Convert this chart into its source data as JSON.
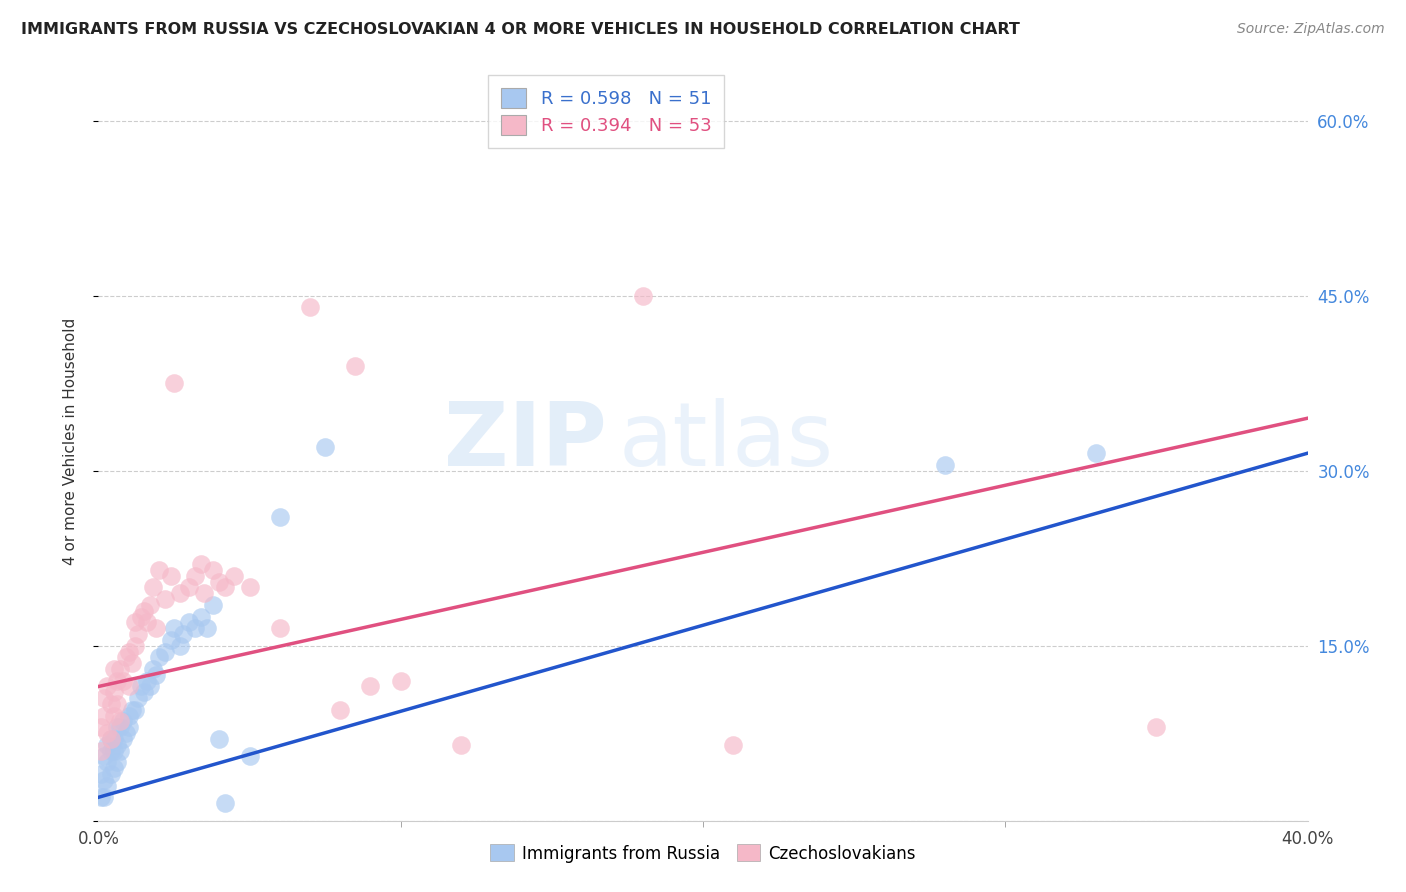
{
  "title": "IMMIGRANTS FROM RUSSIA VS CZECHOSLOVAKIAN 4 OR MORE VEHICLES IN HOUSEHOLD CORRELATION CHART",
  "source": "Source: ZipAtlas.com",
  "ylabel": "4 or more Vehicles in Household",
  "legend_label_blue": "Immigrants from Russia",
  "legend_label_pink": "Czechoslovakians",
  "blue_color": "#a8c8f0",
  "pink_color": "#f5b8c8",
  "blue_line_color": "#2255cc",
  "pink_line_color": "#e05080",
  "watermark_zip": "ZIP",
  "watermark_atlas": "atlas",
  "xlim": [
    0.0,
    0.4
  ],
  "ylim": [
    0.0,
    0.65
  ],
  "y_ticks": [
    0.0,
    0.15,
    0.3,
    0.45,
    0.6
  ],
  "y_tick_labels": [
    "",
    "15.0%",
    "30.0%",
    "45.0%",
    "60.0%"
  ],
  "x_ticks": [
    0.0,
    0.4
  ],
  "x_tick_labels": [
    "0.0%",
    "40.0%"
  ],
  "legend1_blue_text": "R = 0.598   N = 51",
  "legend1_pink_text": "R = 0.394   N = 53",
  "blue_scatter_x": [
    0.001,
    0.001,
    0.002,
    0.002,
    0.002,
    0.003,
    0.003,
    0.003,
    0.004,
    0.004,
    0.004,
    0.005,
    0.005,
    0.005,
    0.006,
    0.006,
    0.006,
    0.007,
    0.007,
    0.008,
    0.008,
    0.009,
    0.01,
    0.01,
    0.011,
    0.012,
    0.013,
    0.014,
    0.015,
    0.016,
    0.017,
    0.018,
    0.019,
    0.02,
    0.022,
    0.024,
    0.025,
    0.027,
    0.028,
    0.03,
    0.032,
    0.034,
    0.036,
    0.038,
    0.04,
    0.042,
    0.05,
    0.06,
    0.075,
    0.28,
    0.33
  ],
  "blue_scatter_y": [
    0.02,
    0.04,
    0.02,
    0.035,
    0.055,
    0.03,
    0.05,
    0.065,
    0.04,
    0.06,
    0.07,
    0.045,
    0.06,
    0.07,
    0.05,
    0.065,
    0.08,
    0.06,
    0.08,
    0.07,
    0.085,
    0.075,
    0.08,
    0.09,
    0.095,
    0.095,
    0.105,
    0.115,
    0.11,
    0.12,
    0.115,
    0.13,
    0.125,
    0.14,
    0.145,
    0.155,
    0.165,
    0.15,
    0.16,
    0.17,
    0.165,
    0.175,
    0.165,
    0.185,
    0.07,
    0.015,
    0.055,
    0.26,
    0.32,
    0.305,
    0.315
  ],
  "pink_scatter_x": [
    0.001,
    0.001,
    0.002,
    0.002,
    0.003,
    0.003,
    0.004,
    0.004,
    0.005,
    0.005,
    0.005,
    0.006,
    0.006,
    0.007,
    0.007,
    0.008,
    0.009,
    0.01,
    0.01,
    0.011,
    0.012,
    0.012,
    0.013,
    0.014,
    0.015,
    0.016,
    0.017,
    0.018,
    0.019,
    0.02,
    0.022,
    0.024,
    0.025,
    0.027,
    0.03,
    0.032,
    0.034,
    0.035,
    0.038,
    0.04,
    0.042,
    0.045,
    0.05,
    0.06,
    0.07,
    0.08,
    0.085,
    0.09,
    0.1,
    0.12,
    0.18,
    0.21,
    0.35
  ],
  "pink_scatter_y": [
    0.06,
    0.08,
    0.09,
    0.105,
    0.075,
    0.115,
    0.07,
    0.1,
    0.09,
    0.11,
    0.13,
    0.1,
    0.12,
    0.085,
    0.13,
    0.12,
    0.14,
    0.115,
    0.145,
    0.135,
    0.15,
    0.17,
    0.16,
    0.175,
    0.18,
    0.17,
    0.185,
    0.2,
    0.165,
    0.215,
    0.19,
    0.21,
    0.375,
    0.195,
    0.2,
    0.21,
    0.22,
    0.195,
    0.215,
    0.205,
    0.2,
    0.21,
    0.2,
    0.165,
    0.44,
    0.095,
    0.39,
    0.115,
    0.12,
    0.065,
    0.45,
    0.065,
    0.08
  ]
}
